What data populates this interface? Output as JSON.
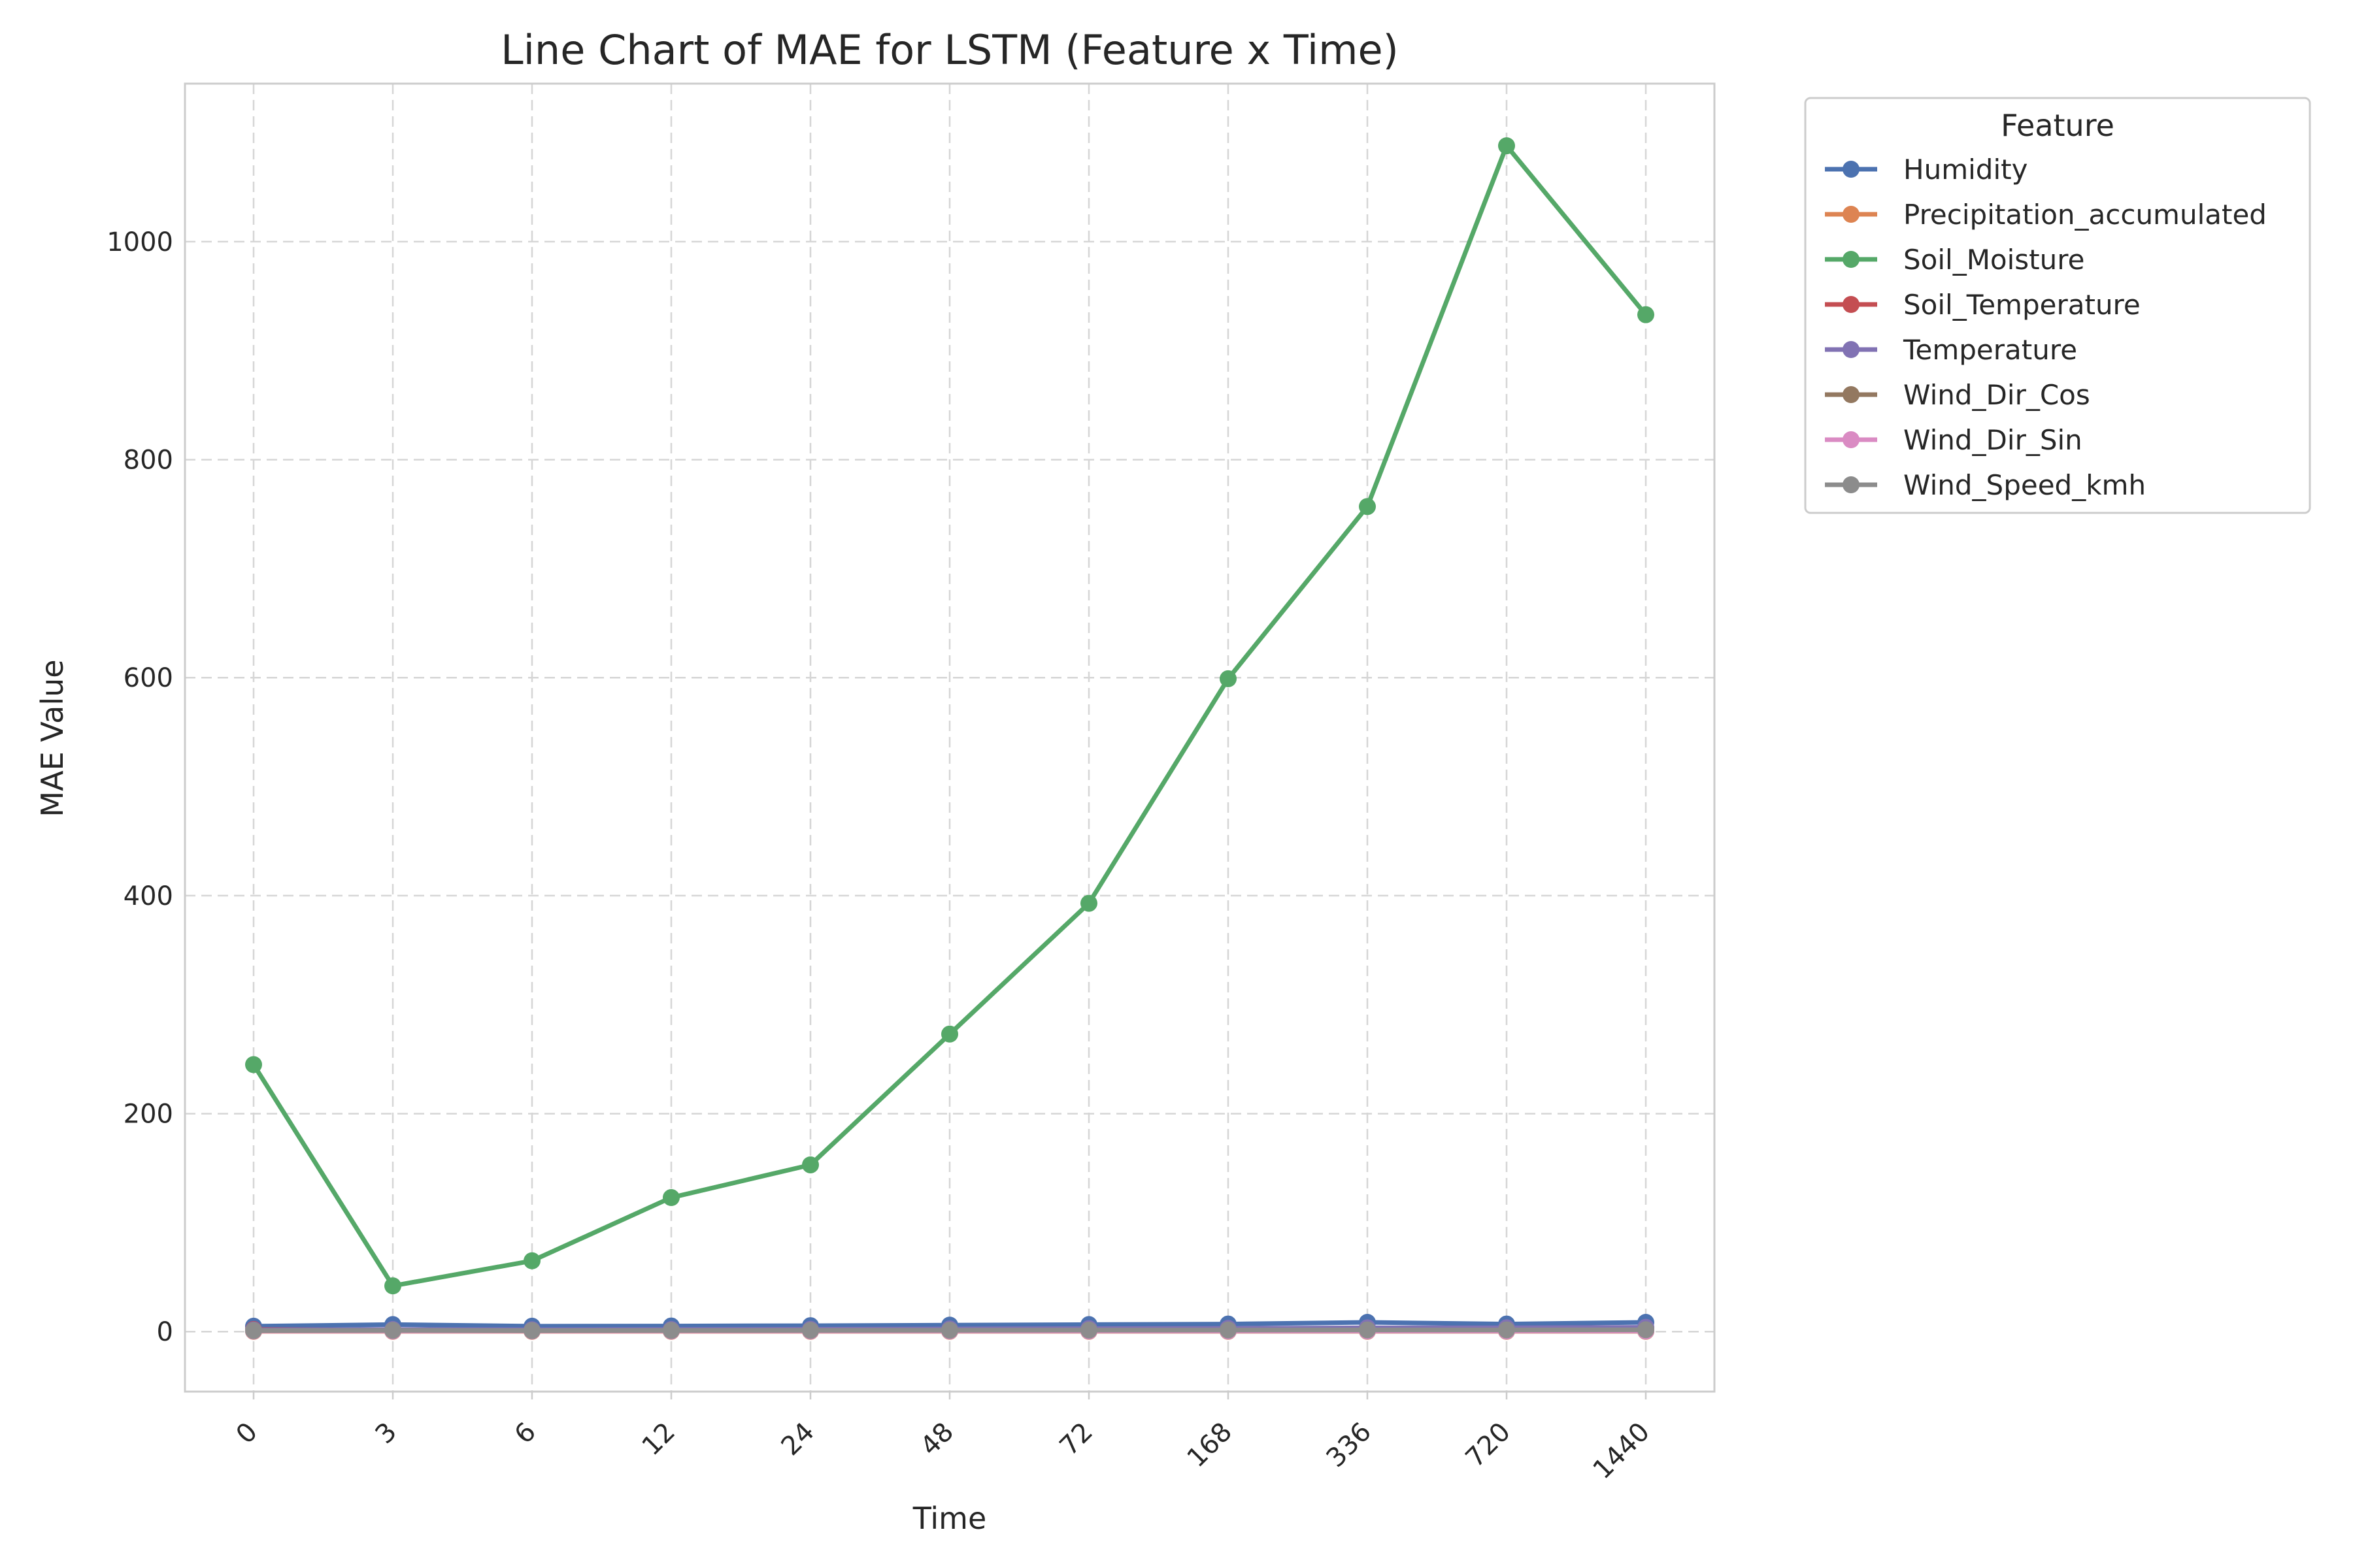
{
  "chart_data": {
    "type": "line",
    "title": "Line Chart of MAE for LSTM (Feature x Time)",
    "xlabel": "Time",
    "ylabel": "MAE Value",
    "categories": [
      "0",
      "3",
      "6",
      "12",
      "24",
      "48",
      "72",
      "168",
      "336",
      "720",
      "1440"
    ],
    "ylim": [
      -55,
      1145
    ],
    "yticks": [
      0,
      200,
      400,
      600,
      800,
      1000
    ],
    "ytick_labels": [
      "0",
      "200",
      "400",
      "600",
      "800",
      "1000"
    ],
    "grid": true,
    "legend": {
      "title": "Feature",
      "placement": "outside-top-right"
    },
    "series": [
      {
        "name": "Humidity",
        "color": "#4c72b0",
        "values": [
          5,
          6.5,
          5,
          5.2,
          5.5,
          6,
          6.5,
          7,
          8.5,
          7,
          8.5
        ]
      },
      {
        "name": "Precipitation_accumulated",
        "color": "#dd8452",
        "values": [
          0.3,
          0.3,
          0.3,
          0.3,
          0.3,
          0.3,
          0.3,
          0.3,
          0.3,
          0.3,
          0.3
        ]
      },
      {
        "name": "Soil_Moisture",
        "color": "#55a868",
        "values": [
          245,
          42,
          65,
          123,
          153,
          273,
          393,
          599,
          757,
          1088,
          933
        ]
      },
      {
        "name": "Soil_Temperature",
        "color": "#c44e52",
        "values": [
          2,
          1.5,
          1.6,
          1.8,
          2,
          2.2,
          2.5,
          2.8,
          3,
          3,
          3.2
        ]
      },
      {
        "name": "Temperature",
        "color": "#8172b3",
        "values": [
          1.5,
          2,
          1.8,
          2,
          2.2,
          2.5,
          2.8,
          3,
          3.5,
          3.5,
          4
        ]
      },
      {
        "name": "Wind_Dir_Cos",
        "color": "#937860",
        "values": [
          0.6,
          0.6,
          0.6,
          0.6,
          0.6,
          0.6,
          0.6,
          0.6,
          0.6,
          0.6,
          0.6
        ]
      },
      {
        "name": "Wind_Dir_Sin",
        "color": "#da8bc3",
        "values": [
          0.6,
          0.6,
          0.6,
          0.6,
          0.6,
          0.6,
          0.6,
          0.6,
          0.6,
          0.6,
          0.6
        ]
      },
      {
        "name": "Wind_Speed_kmh",
        "color": "#8c8c8c",
        "values": [
          1,
          1.2,
          1,
          1.1,
          1.2,
          1.3,
          1.4,
          1.5,
          1.6,
          1.6,
          1.7
        ]
      }
    ]
  }
}
